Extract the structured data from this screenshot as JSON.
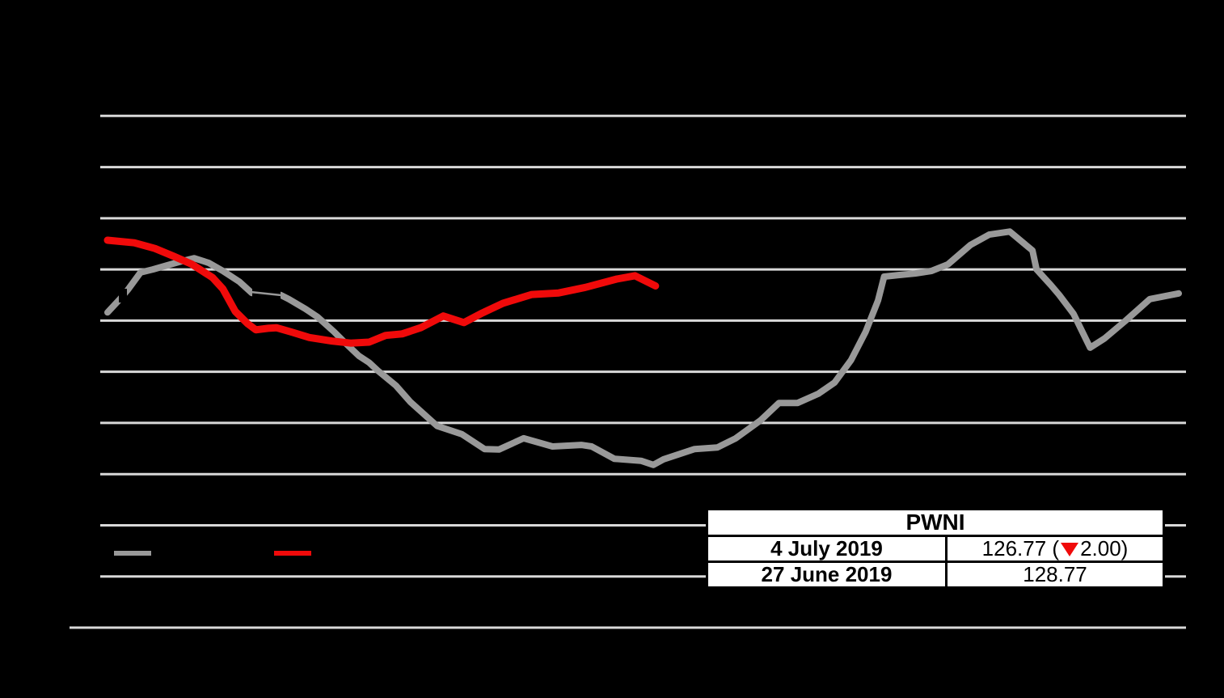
{
  "table": {
    "title": "PWNI",
    "rows": [
      {
        "label": "4 July 2019",
        "value_before_change": "126.77 (",
        "change_direction": "down",
        "value_after_change": "2.00)"
      },
      {
        "label": "27 June 2019",
        "value": "128.77"
      }
    ]
  },
  "legend": {
    "items": [
      {
        "id": "previous-period-line",
        "color": "#999999"
      },
      {
        "id": "current-period-line",
        "color": "#f00a0a"
      }
    ]
  },
  "chart_data": {
    "type": "line",
    "title": "",
    "grid": true,
    "legend_position": "bottom-left",
    "colors": {
      "background": "#000000",
      "gridline": "#d9d9d9"
    },
    "x_axis": {
      "range_weeks": [
        0,
        52
      ],
      "tick_labels_visible": false
    },
    "y_axis": {
      "range": [
        60,
        160
      ],
      "gridline_values": [
        60,
        70,
        80,
        90,
        100,
        110,
        120,
        130,
        140,
        150,
        160
      ],
      "tick_labels_visible": false
    },
    "series": [
      {
        "name": "gray-line",
        "color": "#999999",
        "stroke_width": 8,
        "points": [
          [
            0,
            121.6
          ],
          [
            0.6,
            124.2
          ],
          [
            1.0,
            126.1
          ],
          [
            1.6,
            129.4
          ],
          [
            2.2,
            130.0
          ],
          [
            2.9,
            130.8
          ],
          [
            3.6,
            131.6
          ],
          [
            4.2,
            132.2
          ],
          [
            4.9,
            131.3
          ],
          [
            5.6,
            129.7
          ],
          [
            6.4,
            127.6
          ],
          [
            7.0,
            125.4
          ],
          [
            7.7,
            125.3
          ],
          [
            8.4,
            125.0
          ],
          [
            8.8,
            124.2
          ],
          [
            9.6,
            122.3
          ],
          [
            10.2,
            120.7
          ],
          [
            11.0,
            117.8
          ],
          [
            11.5,
            115.8
          ],
          [
            12.2,
            113.1
          ],
          [
            12.7,
            111.8
          ],
          [
            13.1,
            110.3
          ],
          [
            14.0,
            107.3
          ],
          [
            14.7,
            104.1
          ],
          [
            16.0,
            99.4
          ],
          [
            17.2,
            97.8
          ],
          [
            18.3,
            94.9
          ],
          [
            19.0,
            94.8
          ],
          [
            20.2,
            97.0
          ],
          [
            21.6,
            95.4
          ],
          [
            23.0,
            95.7
          ],
          [
            23.5,
            95.4
          ],
          [
            24.6,
            93.0
          ],
          [
            25.9,
            92.6
          ],
          [
            26.5,
            91.8
          ],
          [
            27.0,
            92.9
          ],
          [
            28.5,
            94.9
          ],
          [
            29.6,
            95.2
          ],
          [
            30.5,
            97.0
          ],
          [
            31.7,
            100.5
          ],
          [
            32.6,
            103.9
          ],
          [
            33.5,
            103.9
          ],
          [
            34.5,
            105.7
          ],
          [
            35.3,
            107.9
          ],
          [
            36.1,
            112.3
          ],
          [
            36.8,
            117.8
          ],
          [
            37.4,
            123.9
          ],
          [
            37.7,
            128.6
          ],
          [
            38.4,
            128.9
          ],
          [
            39.2,
            129.2
          ],
          [
            40.0,
            129.7
          ],
          [
            40.8,
            131.0
          ],
          [
            41.9,
            134.8
          ],
          [
            42.8,
            136.8
          ],
          [
            43.8,
            137.4
          ],
          [
            44.9,
            133.7
          ],
          [
            45.1,
            130.0
          ],
          [
            45.8,
            126.9
          ],
          [
            46.2,
            125.0
          ],
          [
            46.9,
            121.3
          ],
          [
            47.7,
            114.7
          ],
          [
            48.4,
            116.5
          ],
          [
            49.4,
            119.9
          ],
          [
            50.6,
            124.2
          ],
          [
            52,
            125.3
          ]
        ]
      },
      {
        "name": "red-line",
        "color": "#f00a0a",
        "stroke_width": 9,
        "points": [
          [
            0,
            135.7
          ],
          [
            1.3,
            135.2
          ],
          [
            2.3,
            134.1
          ],
          [
            3.2,
            132.6
          ],
          [
            4.1,
            131.0
          ],
          [
            5.1,
            128.4
          ],
          [
            5.6,
            126.2
          ],
          [
            6.2,
            121.8
          ],
          [
            6.8,
            119.4
          ],
          [
            7.2,
            118.2
          ],
          [
            7.8,
            118.5
          ],
          [
            8.2,
            118.6
          ],
          [
            8.9,
            117.8
          ],
          [
            9.8,
            116.7
          ],
          [
            10.9,
            116.0
          ],
          [
            11.8,
            115.6
          ],
          [
            12.7,
            115.8
          ],
          [
            13.5,
            117.1
          ],
          [
            14.3,
            117.4
          ],
          [
            15.2,
            118.6
          ],
          [
            16.3,
            120.9
          ],
          [
            17.3,
            119.6
          ],
          [
            18.2,
            121.5
          ],
          [
            19.2,
            123.4
          ],
          [
            20.6,
            125.1
          ],
          [
            21.9,
            125.4
          ],
          [
            23.2,
            126.5
          ],
          [
            24.7,
            128.1
          ],
          [
            25.6,
            128.77
          ],
          [
            26.6,
            126.77
          ]
        ]
      }
    ]
  }
}
